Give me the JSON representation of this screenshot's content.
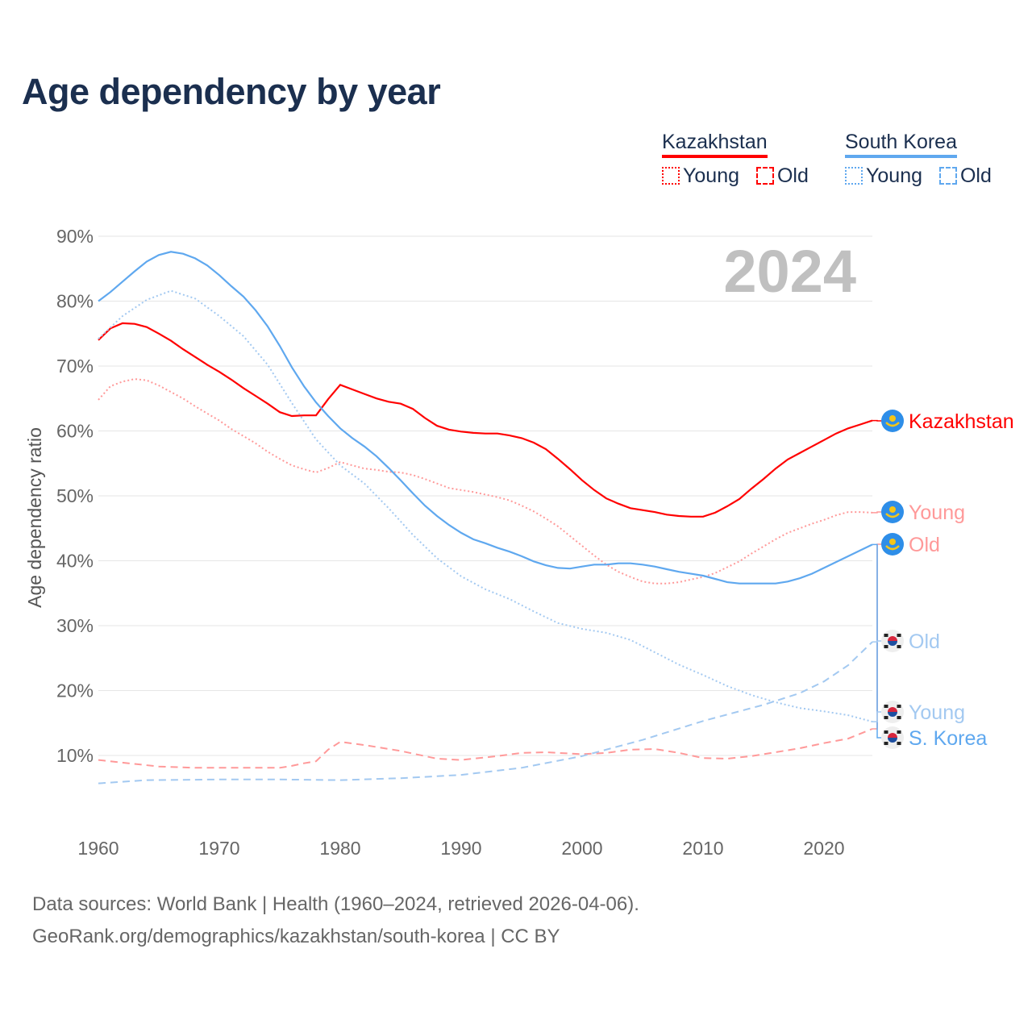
{
  "title": "Age dependency by year",
  "legend": {
    "groups": [
      {
        "name": "Kazakhstan",
        "color": "#ff0000",
        "light": "#ff9999",
        "items": [
          "Young",
          "Old"
        ]
      },
      {
        "name": "South Korea",
        "color": "#5fa8ef",
        "light": "#a3c9f1",
        "items": [
          "Young",
          "Old"
        ]
      }
    ]
  },
  "year_watermark": "2024",
  "footer": {
    "line1": "Data sources: World Bank | Health (1960–2024, retrieved 2026-04-06).",
    "line2": "GeoRank.org/demographics/kazakhstan/south-korea | CC BY"
  },
  "chart_data": {
    "type": "line",
    "title": "Age dependency by year",
    "xlabel": "",
    "ylabel": "Age dependency ratio",
    "xlim": [
      1960,
      2024
    ],
    "ylim": [
      0,
      90
    ],
    "xticks": [
      "1960",
      "1970",
      "1980",
      "1990",
      "2000",
      "2010",
      "2020"
    ],
    "yticks": [
      "10%",
      "20%",
      "30%",
      "40%",
      "50%",
      "60%",
      "70%",
      "80%",
      "90%"
    ],
    "grid": true,
    "series": [
      {
        "name": "Kazakhstan",
        "end_label": "Kazakhstan",
        "country": "kz",
        "color": "#ff0000",
        "style": "solid",
        "x": [
          1960,
          1961,
          1962,
          1963,
          1964,
          1965,
          1966,
          1967,
          1968,
          1969,
          1970,
          1971,
          1972,
          1973,
          1974,
          1975,
          1976,
          1977,
          1978,
          1979,
          1980,
          1981,
          1982,
          1983,
          1984,
          1985,
          1986,
          1987,
          1988,
          1989,
          1990,
          1991,
          1992,
          1993,
          1994,
          1995,
          1996,
          1997,
          1998,
          1999,
          2000,
          2001,
          2002,
          2003,
          2004,
          2005,
          2006,
          2007,
          2008,
          2009,
          2010,
          2011,
          2012,
          2013,
          2014,
          2015,
          2016,
          2017,
          2018,
          2019,
          2020,
          2021,
          2022,
          2023,
          2024
        ],
        "y": [
          74,
          75.8,
          76.6,
          76.5,
          76,
          75,
          73.9,
          72.6,
          71.4,
          70.2,
          69.1,
          67.9,
          66.6,
          65.4,
          64.2,
          62.9,
          62.3,
          62.4,
          62.4,
          64.9,
          67.1,
          66.4,
          65.7,
          65,
          64.5,
          64.2,
          63.4,
          62,
          60.8,
          60.2,
          59.9,
          59.7,
          59.6,
          59.6,
          59.3,
          58.9,
          58.2,
          57.2,
          55.7,
          54.1,
          52.4,
          50.9,
          49.6,
          48.8,
          48.1,
          47.8,
          47.5,
          47.1,
          46.9,
          46.8,
          46.8,
          47.4,
          48.4,
          49.5,
          51.1,
          52.6,
          54.2,
          55.6,
          56.6,
          57.6,
          58.6,
          59.6,
          60.4,
          61,
          61.6
        ]
      },
      {
        "name": "Kazakhstan Young",
        "end_label": "Young",
        "country": "kz",
        "color": "#ff9999",
        "style": "dotted",
        "x": [
          1960,
          1961,
          1962,
          1963,
          1964,
          1965,
          1966,
          1967,
          1968,
          1969,
          1970,
          1971,
          1972,
          1973,
          1974,
          1975,
          1976,
          1977,
          1978,
          1979,
          1980,
          1981,
          1982,
          1983,
          1984,
          1985,
          1986,
          1987,
          1988,
          1989,
          1990,
          1991,
          1992,
          1993,
          1994,
          1995,
          1996,
          1997,
          1998,
          1999,
          2000,
          2001,
          2002,
          2003,
          2004,
          2005,
          2006,
          2007,
          2008,
          2009,
          2010,
          2011,
          2012,
          2013,
          2014,
          2015,
          2016,
          2017,
          2018,
          2019,
          2020,
          2021,
          2022,
          2023,
          2024
        ],
        "y": [
          64.8,
          66.9,
          67.6,
          68,
          67.8,
          67,
          66,
          65,
          63.8,
          62.7,
          61.6,
          60.3,
          59.2,
          58.1,
          56.8,
          55.7,
          54.7,
          54.1,
          53.6,
          54.3,
          55.2,
          54.7,
          54.2,
          54,
          53.7,
          53.6,
          53.2,
          52.6,
          51.9,
          51.2,
          50.9,
          50.6,
          50.2,
          49.8,
          49.3,
          48.5,
          47.6,
          46.5,
          45.3,
          43.8,
          42.3,
          40.8,
          39.4,
          38.3,
          37.5,
          36.8,
          36.5,
          36.5,
          36.7,
          37.1,
          37.5,
          38.1,
          39,
          39.9,
          41.1,
          42.2,
          43.3,
          44.3,
          45,
          45.7,
          46.3,
          47,
          47.5,
          47.5,
          47.4
        ]
      },
      {
        "name": "Kazakhstan Old",
        "end_label": "Old",
        "country": "kz",
        "color": "#ff9999",
        "style": "dashed",
        "x": [
          1960,
          1963,
          1965,
          1968,
          1970,
          1973,
          1975,
          1976,
          1977,
          1978,
          1979,
          1980,
          1982,
          1985,
          1988,
          1990,
          1993,
          1995,
          1997,
          2000,
          2002,
          2004,
          2006,
          2008,
          2010,
          2012,
          2014,
          2016,
          2018,
          2020,
          2022,
          2024
        ],
        "y": [
          9.3,
          8.7,
          8.3,
          8.1,
          8.1,
          8.1,
          8.1,
          8.4,
          8.8,
          9.1,
          10.9,
          12.1,
          11.6,
          10.7,
          9.5,
          9.3,
          9.9,
          10.4,
          10.5,
          10.2,
          10.4,
          10.9,
          11,
          10.4,
          9.6,
          9.5,
          9.9,
          10.5,
          11.1,
          11.9,
          12.6,
          14.1
        ]
      },
      {
        "name": "South Korea",
        "end_label": "S. Korea",
        "country": "kr",
        "color": "#5fa8ef",
        "style": "solid",
        "x": [
          1960,
          1961,
          1962,
          1963,
          1964,
          1965,
          1966,
          1967,
          1968,
          1969,
          1970,
          1971,
          1972,
          1973,
          1974,
          1975,
          1976,
          1977,
          1978,
          1979,
          1980,
          1981,
          1982,
          1983,
          1984,
          1985,
          1986,
          1987,
          1988,
          1989,
          1990,
          1991,
          1992,
          1993,
          1994,
          1995,
          1996,
          1997,
          1998,
          1999,
          2000,
          2001,
          2002,
          2003,
          2004,
          2005,
          2006,
          2007,
          2008,
          2009,
          2010,
          2011,
          2012,
          2013,
          2014,
          2015,
          2016,
          2017,
          2018,
          2019,
          2020,
          2021,
          2022,
          2023,
          2024
        ],
        "y": [
          80,
          81.4,
          83,
          84.6,
          86.1,
          87.1,
          87.6,
          87.3,
          86.6,
          85.5,
          84,
          82.3,
          80.7,
          78.6,
          76.1,
          73.1,
          69.8,
          66.9,
          64.4,
          62.3,
          60.4,
          58.9,
          57.6,
          56.1,
          54.3,
          52.4,
          50.4,
          48.5,
          46.9,
          45.5,
          44.3,
          43.3,
          42.7,
          42,
          41.4,
          40.7,
          39.9,
          39.3,
          38.9,
          38.8,
          39.1,
          39.4,
          39.4,
          39.6,
          39.6,
          39.4,
          39.1,
          38.7,
          38.3,
          38,
          37.7,
          37.2,
          36.7,
          36.5,
          36.5,
          36.5,
          36.5,
          36.8,
          37.3,
          38,
          38.9,
          39.8,
          40.7,
          41.6,
          42.5
        ]
      },
      {
        "name": "South Korea Young",
        "end_label": "Young",
        "country": "kr",
        "color": "#a3c9f1",
        "style": "dotted",
        "x": [
          1960,
          1962,
          1964,
          1966,
          1968,
          1970,
          1972,
          1974,
          1976,
          1978,
          1980,
          1982,
          1984,
          1986,
          1988,
          1990,
          1992,
          1994,
          1996,
          1998,
          2000,
          2002,
          2004,
          2006,
          2008,
          2010,
          2012,
          2014,
          2016,
          2018,
          2020,
          2022,
          2024
        ],
        "y": [
          74.2,
          77.7,
          80.2,
          81.6,
          80.4,
          77.7,
          74.6,
          70.2,
          64.3,
          58.7,
          54.7,
          51.9,
          48.1,
          44,
          40.4,
          37.6,
          35.6,
          34.1,
          32.2,
          30.4,
          29.5,
          28.9,
          27.8,
          25.9,
          24,
          22.4,
          20.7,
          19.3,
          18.2,
          17.3,
          16.8,
          16.2,
          15.2
        ]
      },
      {
        "name": "South Korea Old",
        "end_label": "Old",
        "country": "kr",
        "color": "#a3c9f1",
        "style": "dashed",
        "x": [
          1960,
          1964,
          1970,
          1975,
          1980,
          1985,
          1990,
          1995,
          2000,
          2005,
          2010,
          2015,
          2018,
          2020,
          2022,
          2024
        ],
        "y": [
          5.7,
          6.2,
          6.3,
          6.3,
          6.2,
          6.5,
          7,
          8.1,
          9.9,
          12.4,
          15.3,
          17.8,
          19.6,
          21.4,
          23.9,
          27.5
        ]
      }
    ]
  }
}
